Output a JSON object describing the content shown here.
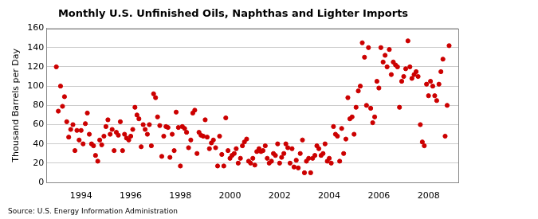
{
  "chart_data": {
    "type": "scatter",
    "title": "Monthly U.S. Unfinished Oils, Naphthas and Lighter Imports",
    "y_label": "Thousand Barrels per Day",
    "source": "Source: U.S. Energy Information Administration",
    "x": [
      1993.0,
      1993.08,
      1993.17,
      1993.25,
      1993.33,
      1993.42,
      1993.5,
      1993.58,
      1993.67,
      1993.75,
      1993.83,
      1993.92,
      1994.0,
      1994.08,
      1994.17,
      1994.25,
      1994.33,
      1994.42,
      1994.5,
      1994.58,
      1994.67,
      1994.75,
      1994.83,
      1994.92,
      1995.0,
      1995.08,
      1995.17,
      1995.25,
      1995.33,
      1995.42,
      1995.5,
      1995.58,
      1995.67,
      1995.75,
      1995.83,
      1995.92,
      1996.0,
      1996.08,
      1996.17,
      1996.25,
      1996.33,
      1996.42,
      1996.5,
      1996.58,
      1996.67,
      1996.75,
      1996.83,
      1996.92,
      1997.0,
      1997.08,
      1997.17,
      1997.25,
      1997.33,
      1997.42,
      1997.5,
      1997.58,
      1997.67,
      1997.75,
      1997.83,
      1997.92,
      1998.0,
      1998.08,
      1998.17,
      1998.25,
      1998.33,
      1998.42,
      1998.5,
      1998.58,
      1998.67,
      1998.75,
      1998.83,
      1998.92,
      1999.0,
      1999.08,
      1999.17,
      1999.25,
      1999.33,
      1999.42,
      1999.5,
      1999.58,
      1999.67,
      1999.75,
      1999.83,
      1999.92,
      2000.0,
      2000.08,
      2000.17,
      2000.25,
      2000.33,
      2000.42,
      2000.5,
      2000.58,
      2000.67,
      2000.75,
      2000.83,
      2000.92,
      2001.0,
      2001.08,
      2001.17,
      2001.25,
      2001.33,
      2001.42,
      2001.5,
      2001.58,
      2001.67,
      2001.75,
      2001.83,
      2001.92,
      2002.0,
      2002.08,
      2002.17,
      2002.25,
      2002.33,
      2002.42,
      2002.5,
      2002.58,
      2002.67,
      2002.75,
      2002.83,
      2002.92,
      2003.0,
      2003.08,
      2003.17,
      2003.25,
      2003.33,
      2003.42,
      2003.5,
      2003.58,
      2003.67,
      2003.75,
      2003.83,
      2003.92,
      2004.0,
      2004.08,
      2004.17,
      2004.25,
      2004.33,
      2004.42,
      2004.5,
      2004.58,
      2004.67,
      2004.75,
      2004.83,
      2004.92,
      2005.0,
      2005.08,
      2005.17,
      2005.25,
      2005.33,
      2005.42,
      2005.5,
      2005.58,
      2005.67,
      2005.75,
      2005.83,
      2005.92,
      2006.0,
      2006.08,
      2006.17,
      2006.25,
      2006.33,
      2006.42,
      2006.5,
      2006.58,
      2006.67,
      2006.75,
      2006.83,
      2006.92,
      2007.0,
      2007.08,
      2007.17,
      2007.25,
      2007.33,
      2007.42,
      2007.5,
      2007.58,
      2007.67,
      2007.75,
      2007.83,
      2007.92,
      2008.0,
      2008.08,
      2008.17,
      2008.25,
      2008.33,
      2008.42,
      2008.5,
      2008.58,
      2008.67,
      2008.75,
      2008.83
    ],
    "values": [
      120,
      74,
      100,
      79,
      89,
      63,
      47,
      55,
      60,
      33,
      54,
      44,
      54,
      40,
      61,
      72,
      50,
      40,
      38,
      28,
      22,
      44,
      39,
      48,
      58,
      65,
      50,
      55,
      33,
      52,
      49,
      63,
      33,
      50,
      46,
      44,
      48,
      55,
      78,
      70,
      66,
      37,
      60,
      55,
      50,
      60,
      38,
      92,
      88,
      68,
      59,
      27,
      48,
      58,
      57,
      26,
      50,
      33,
      73,
      57,
      17,
      58,
      56,
      52,
      36,
      44,
      72,
      75,
      30,
      52,
      49,
      48,
      65,
      47,
      35,
      41,
      44,
      36,
      17,
      48,
      29,
      17,
      67,
      33,
      25,
      28,
      30,
      35,
      20,
      25,
      38,
      42,
      45,
      22,
      20,
      25,
      18,
      32,
      35,
      32,
      33,
      38,
      25,
      20,
      22,
      30,
      28,
      40,
      20,
      26,
      30,
      40,
      36,
      20,
      35,
      16,
      23,
      15,
      30,
      44,
      10,
      22,
      25,
      10,
      25,
      28,
      38,
      35,
      28,
      30,
      40,
      22,
      25,
      20,
      58,
      50,
      48,
      22,
      56,
      30,
      45,
      88,
      66,
      68,
      50,
      78,
      95,
      100,
      145,
      130,
      80,
      140,
      77,
      62,
      68,
      105,
      98,
      140,
      125,
      132,
      120,
      138,
      112,
      125,
      122,
      120,
      78,
      105,
      110,
      118,
      147,
      120,
      108,
      112,
      115,
      110,
      60,
      42,
      38,
      102,
      90,
      105,
      100,
      90,
      85,
      102,
      115,
      128,
      48,
      80,
      142
    ],
    "color": "#cc0000",
    "marker": "circle",
    "xlim": [
      1992.6,
      2009.2
    ],
    "xticks": [
      1994,
      1996,
      1998,
      2000,
      2002,
      2004,
      2006,
      2008
    ],
    "ylim": [
      0,
      160
    ],
    "yticks": [
      0,
      20,
      40,
      60,
      80,
      100,
      120,
      140,
      160
    ],
    "grid": true
  }
}
